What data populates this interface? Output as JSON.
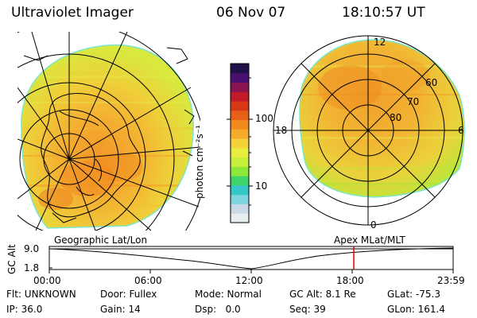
{
  "header": {
    "instrument": "Ultraviolet Imager",
    "date": "06 Nov 07",
    "time": "18:10:57 UT"
  },
  "colorbar": {
    "unit_label": "photon cm⁻²s⁻¹",
    "tick_100": "100",
    "tick_10": "10",
    "colors": [
      "#e8eef0",
      "#c9d9e6",
      "#7fd4e0",
      "#36c8c8",
      "#3fd36b",
      "#8ee83a",
      "#c6ef3a",
      "#e8ee40",
      "#f4d23a",
      "#f5ab2c",
      "#f18a1c",
      "#e86018",
      "#d83818",
      "#c11a28",
      "#8a1450",
      "#4a1070",
      "#20104a"
    ]
  },
  "polar_plot": {
    "label_12": "12",
    "label_6": "6",
    "label_18": "18",
    "label_0": "0",
    "label_60": "60",
    "label_70": "70",
    "label_80": "80"
  },
  "timeline": {
    "left_label": "Geographic Lat/Lon",
    "right_label": "Apex MLat/MLT",
    "y_axis_label": "GC Alt",
    "y_top": "9.0",
    "y_bottom": "1.8",
    "x_ticks": [
      "00:00",
      "06:00",
      "12:00",
      "18:00",
      "23:59"
    ],
    "marker_color": "#e00000"
  },
  "status": {
    "row1": {
      "flt": "Flt: UNKNOWN",
      "door": "Door: Fullex",
      "mode": "Mode: Normal",
      "gcalt": "GC Alt: 8.1 Re",
      "glat": "GLat: -75.3"
    },
    "row2": {
      "ip": "IP: 36.0",
      "gain": "Gain: 14",
      "dsp": "Dsp:   0.0",
      "seq": "Seq: 39",
      "glon": "GLon: 161.4"
    }
  }
}
